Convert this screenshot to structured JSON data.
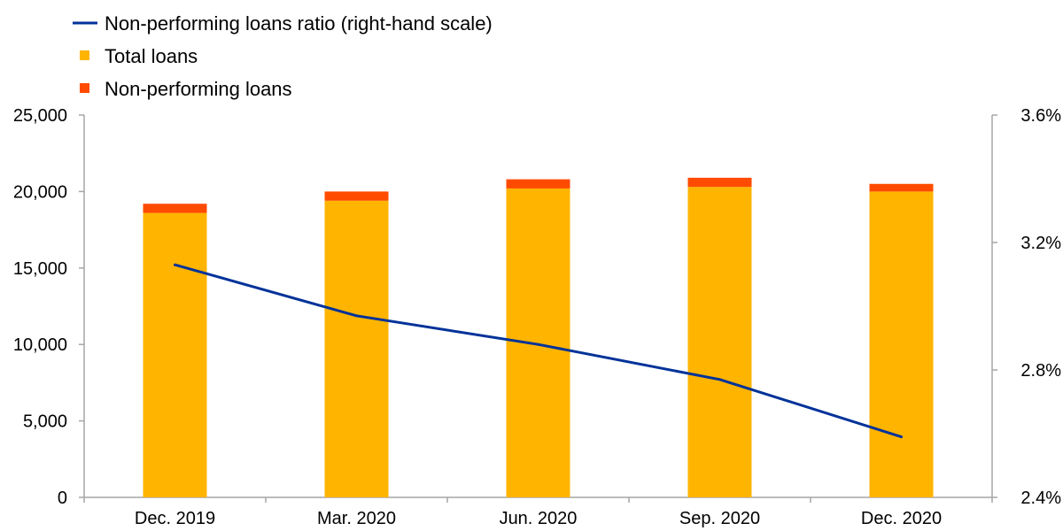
{
  "chart_data": {
    "type": "bar",
    "stacked": true,
    "categories": [
      "Dec. 2019",
      "Mar. 2020",
      "Jun. 2020",
      "Sep. 2020",
      "Dec. 2020"
    ],
    "series": [
      {
        "name": "Total loans",
        "kind": "bar",
        "axis": "left",
        "color": "#FFB400",
        "values": [
          18600,
          19400,
          20200,
          20300,
          20000
        ]
      },
      {
        "name": "Non-performing loans",
        "kind": "bar",
        "axis": "left",
        "color": "#FF4B00",
        "values": [
          600,
          600,
          600,
          600,
          500
        ]
      },
      {
        "name": "Non-performing loans ratio (right-hand scale)",
        "kind": "line",
        "axis": "right",
        "color": "#003299",
        "values": [
          3.13,
          2.97,
          2.88,
          2.77,
          2.59
        ]
      }
    ],
    "legend_order": [
      2,
      0,
      1
    ],
    "y_left": {
      "min": 0,
      "max": 25000,
      "ticks": [
        0,
        5000,
        10000,
        15000,
        20000,
        25000
      ],
      "tick_labels": [
        "0",
        "5,000",
        "10,000",
        "15,000",
        "20,000",
        "25,000"
      ]
    },
    "y_right": {
      "min": 2.4,
      "max": 3.6,
      "ticks": [
        2.4,
        2.8,
        3.2,
        3.6
      ],
      "tick_labels": [
        "2.4%",
        "2.8%",
        "3.2%",
        "3.6%"
      ]
    },
    "legend_placement": "top-left",
    "grid": false,
    "title": "",
    "xlabel": "",
    "ylabel": ""
  }
}
